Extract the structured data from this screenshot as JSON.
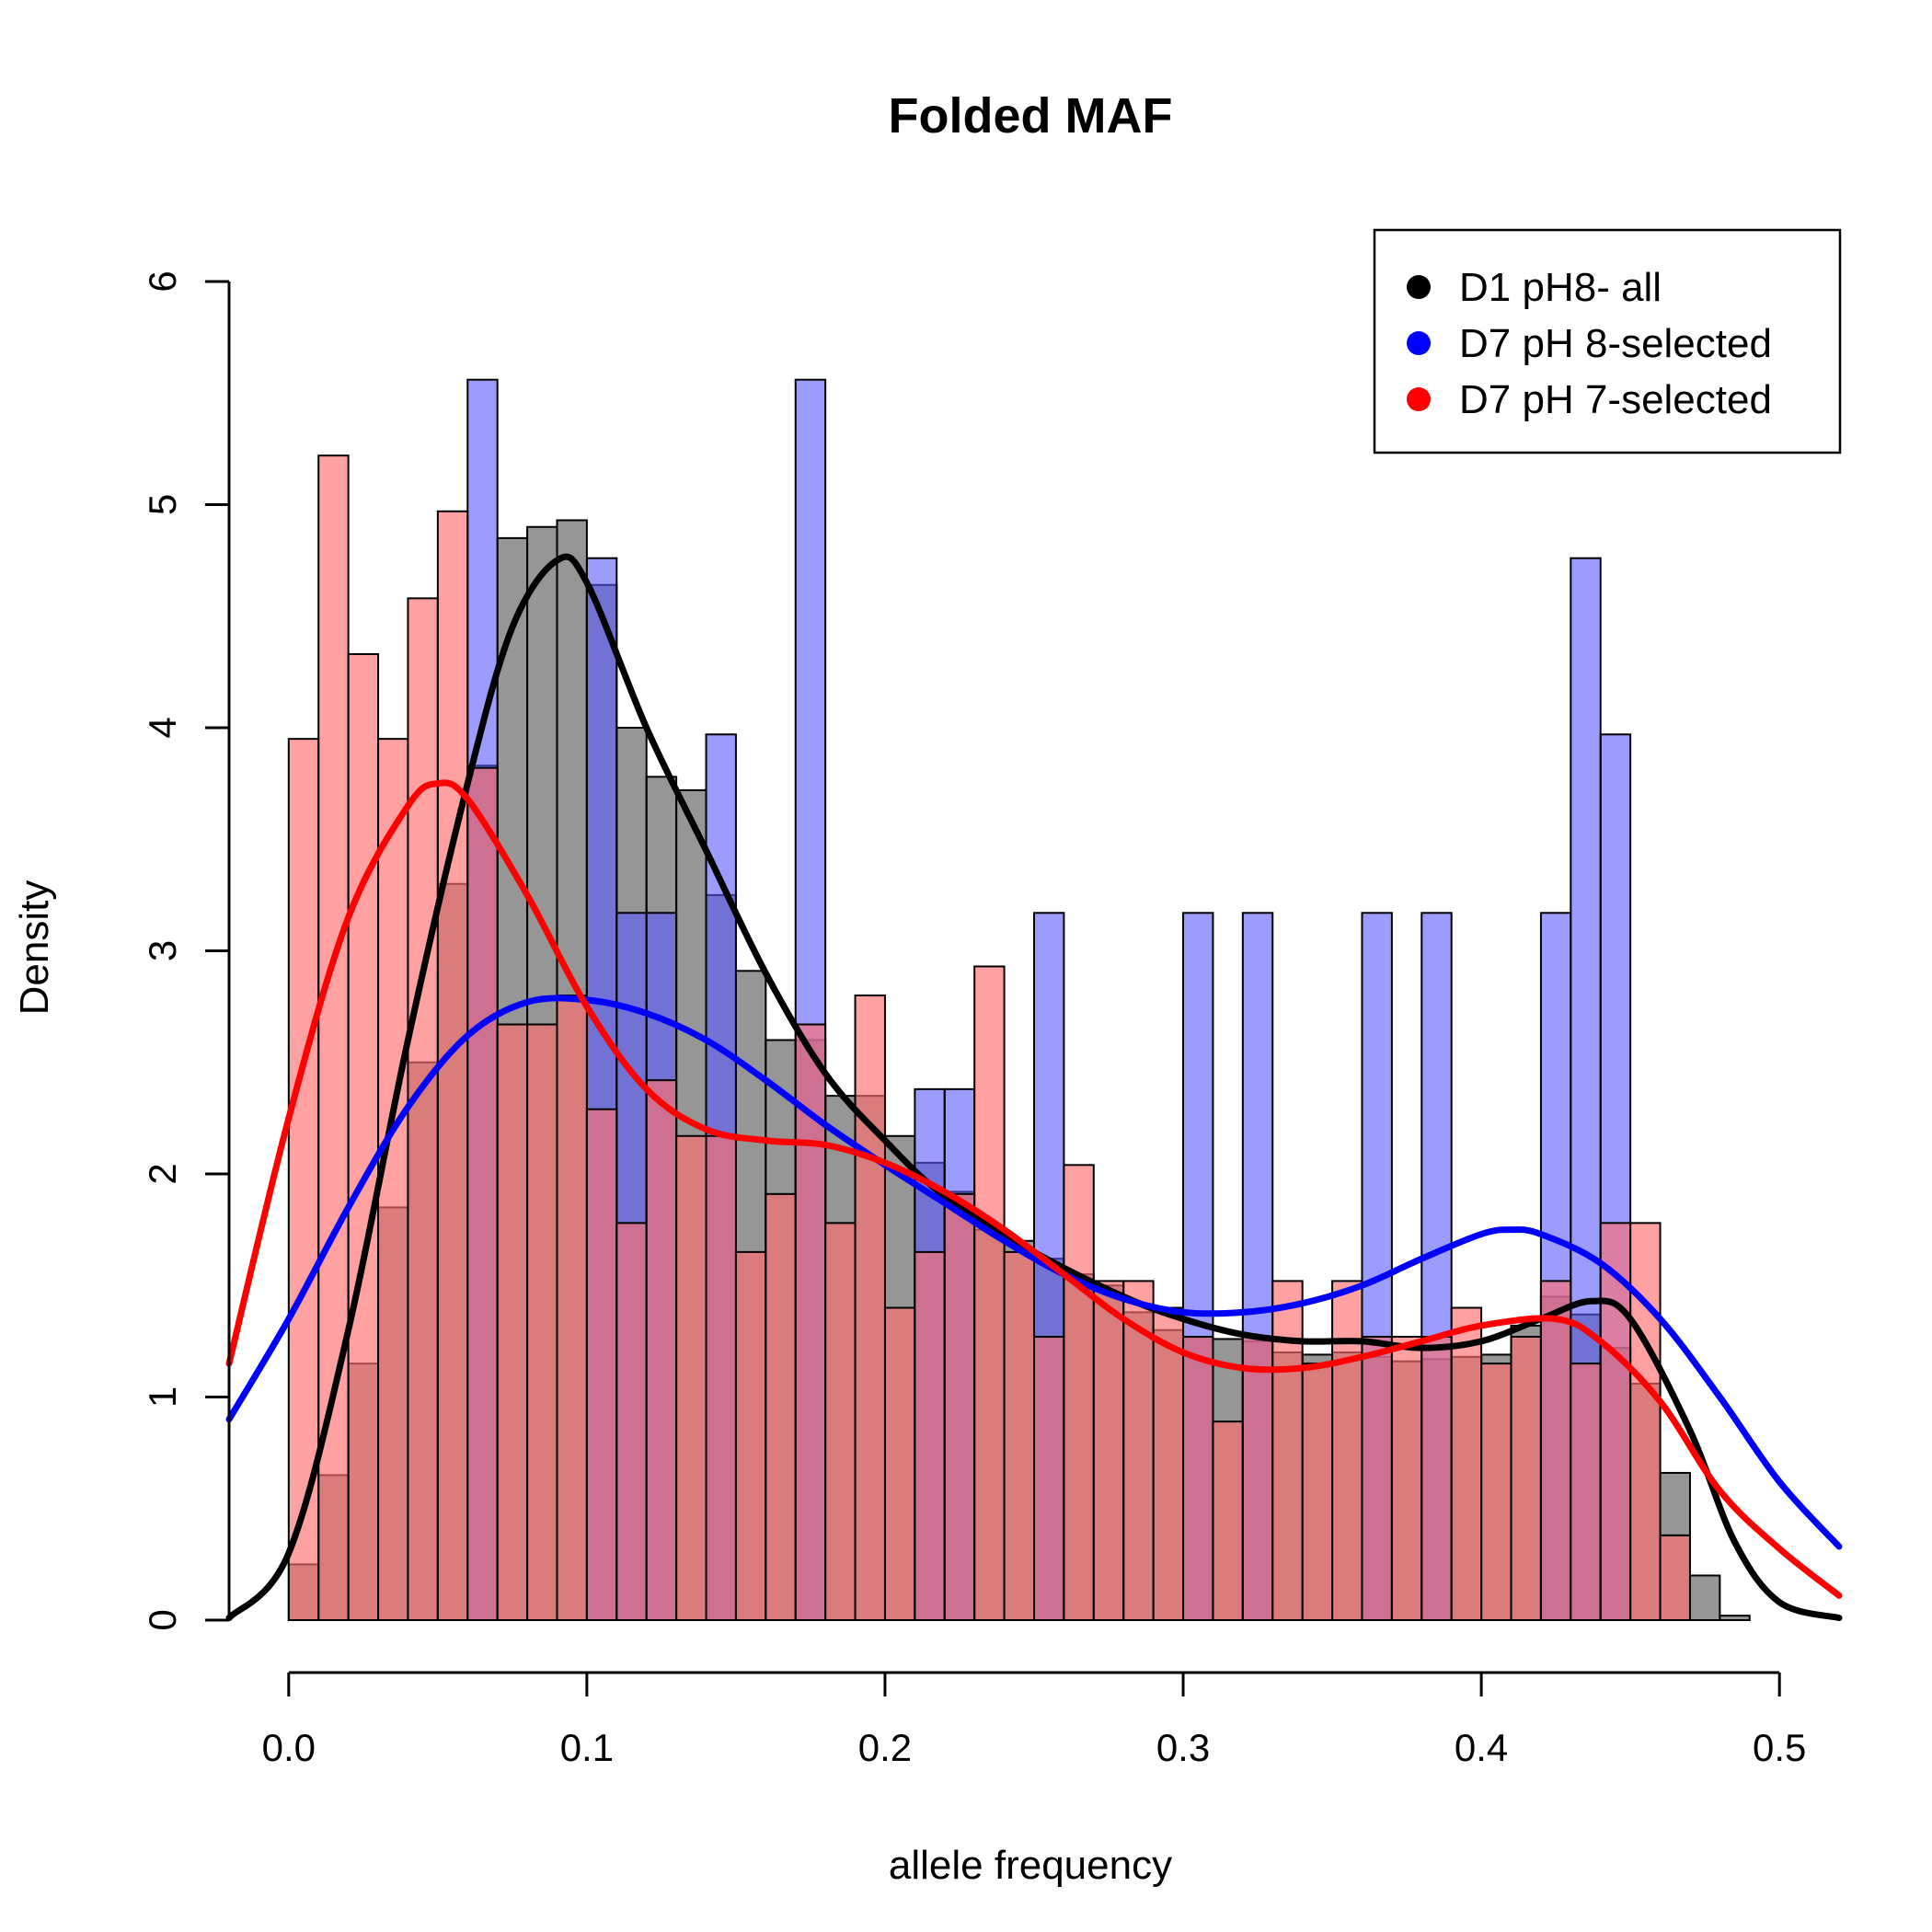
{
  "chart_data": {
    "type": "bar",
    "title": "Folded MAF",
    "xlabel": "allele frequency",
    "ylabel": "Density",
    "xlim": [
      -0.02,
      0.52
    ],
    "ylim": [
      0,
      6
    ],
    "x_ticks": [
      "0.0",
      "0.1",
      "0.2",
      "0.3",
      "0.4",
      "0.5"
    ],
    "y_ticks": [
      "0",
      "1",
      "2",
      "3",
      "4",
      "5",
      "6"
    ],
    "bin_width": 0.01,
    "bin_start": 0.0,
    "legend": {
      "position": "top-right",
      "items": [
        {
          "label": "D1 pH8- all",
          "color": "#000000"
        },
        {
          "label": "D7 pH 8-selected",
          "color": "#0000ff"
        },
        {
          "label": "D7 pH 7-selected",
          "color": "#ff0000"
        }
      ]
    },
    "series": [
      {
        "name": "D1 pH8- all",
        "color": "#000000",
        "fill": "rgba(64,64,64,0.55)",
        "values": [
          0.25,
          0.65,
          1.15,
          1.85,
          2.5,
          3.3,
          3.83,
          4.85,
          4.9,
          4.93,
          4.64,
          4.0,
          3.78,
          3.72,
          3.25,
          2.91,
          2.6,
          2.6,
          2.35,
          2.35,
          2.17,
          2.05,
          1.92,
          1.75,
          1.7,
          1.62,
          1.55,
          1.5,
          1.38,
          1.3,
          1.27,
          1.26,
          1.25,
          1.2,
          1.19,
          1.2,
          1.18,
          1.16,
          1.17,
          1.18,
          1.19,
          1.32,
          1.45,
          1.37,
          1.22,
          1.06,
          0.66,
          0.2,
          0.02
        ],
        "density_curve": [
          [
            -0.02,
            0.01
          ],
          [
            0.0,
            0.3
          ],
          [
            0.02,
            1.3
          ],
          [
            0.04,
            2.6
          ],
          [
            0.06,
            3.75
          ],
          [
            0.075,
            4.45
          ],
          [
            0.09,
            4.75
          ],
          [
            0.1,
            4.65
          ],
          [
            0.12,
            4.0
          ],
          [
            0.14,
            3.45
          ],
          [
            0.16,
            2.9
          ],
          [
            0.18,
            2.45
          ],
          [
            0.2,
            2.15
          ],
          [
            0.22,
            1.9
          ],
          [
            0.25,
            1.65
          ],
          [
            0.28,
            1.45
          ],
          [
            0.3,
            1.35
          ],
          [
            0.32,
            1.28
          ],
          [
            0.34,
            1.25
          ],
          [
            0.36,
            1.25
          ],
          [
            0.38,
            1.22
          ],
          [
            0.4,
            1.25
          ],
          [
            0.42,
            1.35
          ],
          [
            0.437,
            1.43
          ],
          [
            0.45,
            1.35
          ],
          [
            0.47,
            0.85
          ],
          [
            0.485,
            0.35
          ],
          [
            0.5,
            0.08
          ],
          [
            0.52,
            0.01
          ]
        ]
      },
      {
        "name": "D7 pH 8-selected",
        "color": "#0000ff",
        "fill": "rgba(90,90,255,0.6)",
        "values": [
          0.0,
          0.0,
          0.0,
          0.0,
          0.0,
          0.0,
          5.56,
          0.0,
          0.0,
          0.0,
          4.76,
          3.17,
          3.17,
          0.0,
          3.97,
          0.0,
          0.0,
          5.56,
          0.0,
          0.0,
          0.0,
          2.38,
          2.38,
          0.0,
          0.0,
          3.17,
          0.0,
          0.0,
          0.0,
          0.0,
          3.17,
          0.0,
          3.17,
          0.0,
          0.0,
          0.0,
          3.17,
          0.0,
          3.17,
          0.0,
          0.0,
          0.0,
          3.17,
          4.76,
          3.97,
          0.0,
          0.0,
          0.0,
          0.0
        ],
        "density_curve": [
          [
            -0.02,
            0.9
          ],
          [
            0.0,
            1.35
          ],
          [
            0.02,
            1.85
          ],
          [
            0.04,
            2.3
          ],
          [
            0.06,
            2.62
          ],
          [
            0.08,
            2.77
          ],
          [
            0.1,
            2.78
          ],
          [
            0.12,
            2.72
          ],
          [
            0.14,
            2.6
          ],
          [
            0.16,
            2.42
          ],
          [
            0.18,
            2.22
          ],
          [
            0.2,
            2.04
          ],
          [
            0.22,
            1.87
          ],
          [
            0.24,
            1.7
          ],
          [
            0.26,
            1.55
          ],
          [
            0.28,
            1.44
          ],
          [
            0.3,
            1.38
          ],
          [
            0.32,
            1.38
          ],
          [
            0.34,
            1.42
          ],
          [
            0.36,
            1.5
          ],
          [
            0.38,
            1.62
          ],
          [
            0.4,
            1.73
          ],
          [
            0.41,
            1.75
          ],
          [
            0.42,
            1.73
          ],
          [
            0.44,
            1.6
          ],
          [
            0.46,
            1.35
          ],
          [
            0.48,
            1.0
          ],
          [
            0.5,
            0.62
          ],
          [
            0.52,
            0.33
          ]
        ]
      },
      {
        "name": "D7 pH 7-selected",
        "color": "#ff0000",
        "fill": "rgba(255,110,110,0.65)",
        "values": [
          3.95,
          5.22,
          4.33,
          3.95,
          4.58,
          4.97,
          3.82,
          2.67,
          2.67,
          2.8,
          2.29,
          1.78,
          2.42,
          2.17,
          2.17,
          1.65,
          1.91,
          2.67,
          1.78,
          2.8,
          1.4,
          1.65,
          1.91,
          2.93,
          1.65,
          1.27,
          2.04,
          1.52,
          1.52,
          1.4,
          1.27,
          0.89,
          1.27,
          1.52,
          1.15,
          1.52,
          1.27,
          1.27,
          1.27,
          1.4,
          1.15,
          1.27,
          1.52,
          1.15,
          1.78,
          1.78,
          0.38,
          0.0,
          0.0
        ],
        "density_curve": [
          [
            -0.02,
            1.15
          ],
          [
            0.0,
            2.25
          ],
          [
            0.02,
            3.15
          ],
          [
            0.04,
            3.65
          ],
          [
            0.05,
            3.75
          ],
          [
            0.06,
            3.68
          ],
          [
            0.08,
            3.25
          ],
          [
            0.1,
            2.75
          ],
          [
            0.12,
            2.38
          ],
          [
            0.14,
            2.2
          ],
          [
            0.16,
            2.15
          ],
          [
            0.18,
            2.13
          ],
          [
            0.2,
            2.05
          ],
          [
            0.22,
            1.92
          ],
          [
            0.24,
            1.75
          ],
          [
            0.26,
            1.55
          ],
          [
            0.28,
            1.35
          ],
          [
            0.3,
            1.2
          ],
          [
            0.32,
            1.13
          ],
          [
            0.34,
            1.13
          ],
          [
            0.36,
            1.18
          ],
          [
            0.38,
            1.25
          ],
          [
            0.4,
            1.32
          ],
          [
            0.425,
            1.35
          ],
          [
            0.44,
            1.25
          ],
          [
            0.46,
            0.98
          ],
          [
            0.48,
            0.58
          ],
          [
            0.5,
            0.32
          ],
          [
            0.52,
            0.11
          ]
        ]
      }
    ]
  }
}
